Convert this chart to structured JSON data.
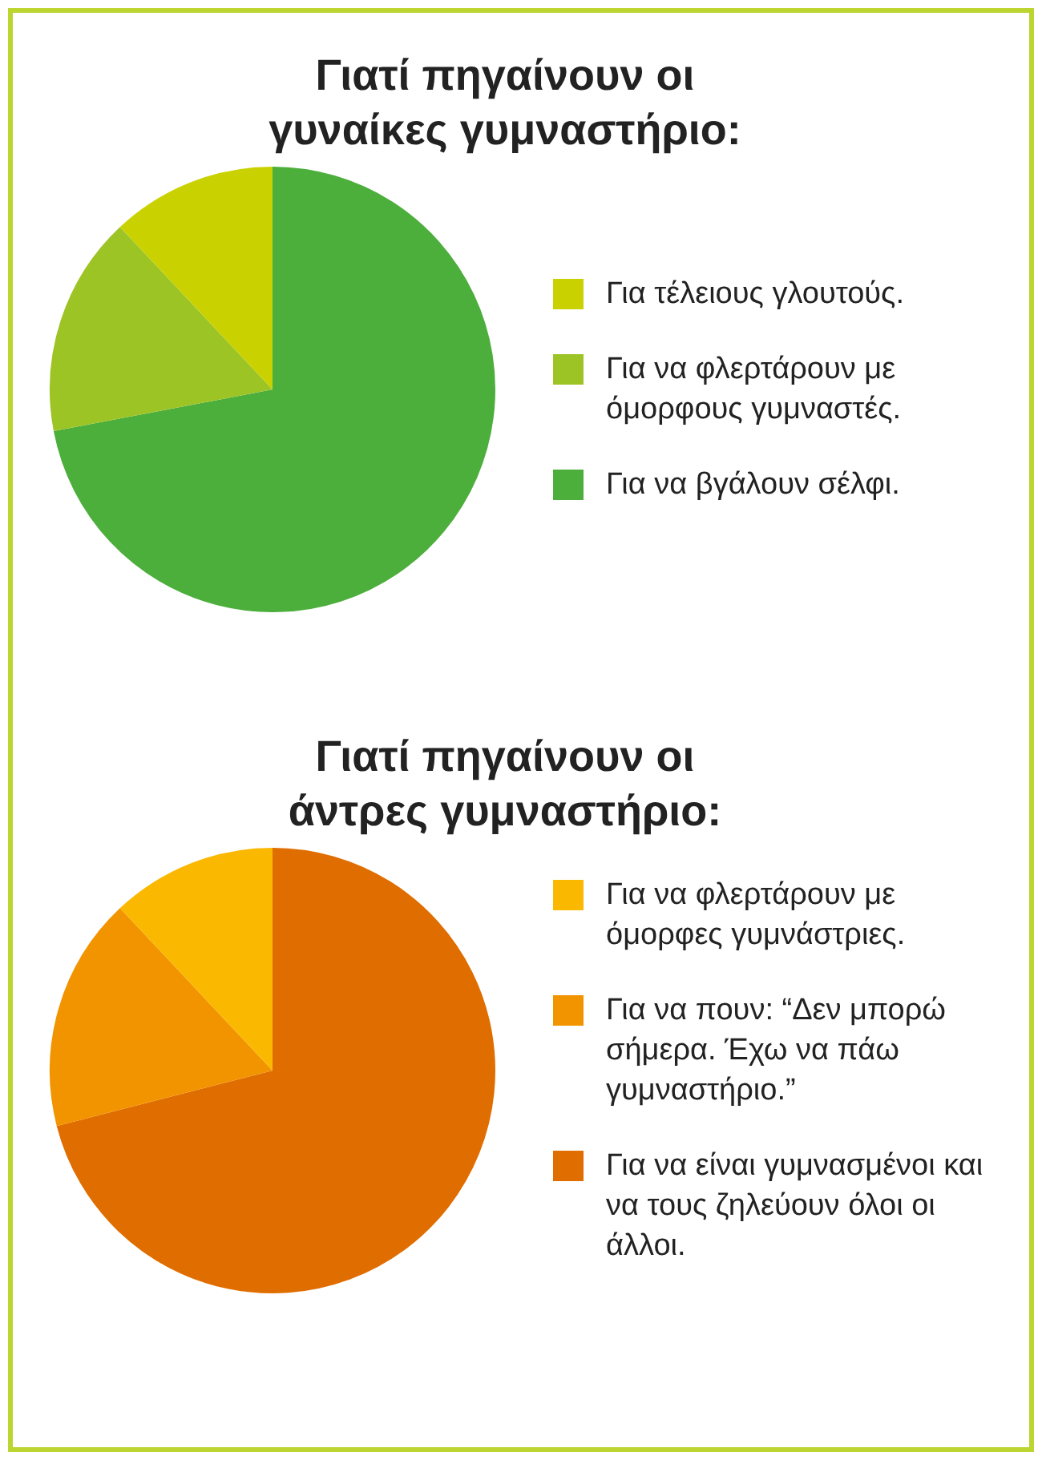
{
  "chart_data": [
    {
      "type": "pie",
      "title": "Γιατί πηγαίνουν οι γυναίκες γυμναστήριο:",
      "categories": [
        "Για τέλειους γλουτούς.",
        "Για να φλερτάρουν με όμορφους γυμναστές.",
        "Για να βγάλουν σέλφι."
      ],
      "values": [
        12,
        16,
        72
      ],
      "colors": [
        "#c9d200",
        "#9dc425",
        "#4cae3b"
      ],
      "legend": "right"
    },
    {
      "type": "pie",
      "title": "Γιατί πηγαίνουν οι άντρες γυμναστήριο:",
      "categories": [
        "Για να φλερτάρουν με όμορφες γυμνάστριες.",
        "Για να πουν: “Δεν μπορώ σήμερα. Έχω να πάω γυμναστήριο.”",
        "Για να είναι γυμνασμένοι και να τους ζηλεύουν όλοι οι άλλοι."
      ],
      "values": [
        12,
        17,
        71
      ],
      "colors": [
        "#fbb800",
        "#f29400",
        "#e06d00"
      ],
      "legend": "right"
    }
  ]
}
